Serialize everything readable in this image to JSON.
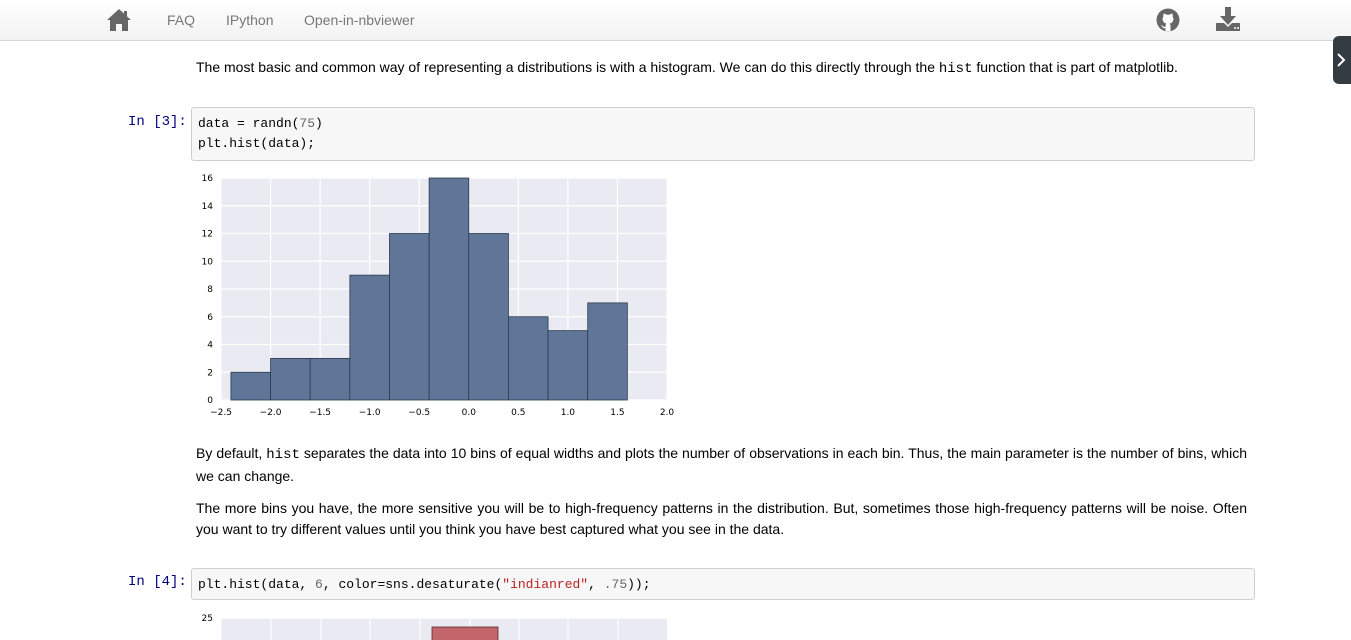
{
  "nav": {
    "links": [
      "FAQ",
      "IPython",
      "Open-in-nbviewer"
    ],
    "home_icon": "home-icon",
    "github_icon": "github-icon",
    "download_icon": "download-icon"
  },
  "side_tab_icon": "chevron-right-icon",
  "markdown": {
    "intro_before": "The most basic and common way of representing a distributions is with a histogram. We can do this directly through the ",
    "intro_code": "hist",
    "intro_after": " function that is part of matplotlib.",
    "para2_before": "By default, ",
    "para2_code": "hist",
    "para2_after": " separates the data into 10 bins of equal widths and plots the number of observations in each bin. Thus, the main parameter is the number of bins, which we can change.",
    "para3": "The more bins you have, the more sensitive you will be to high-frequency patterns in the distribution. But, sometimes those high-frequency patterns will be noise. Often you want to try different values until you think you have best captured what you see in the data."
  },
  "cells": [
    {
      "prompt": "In [3]:",
      "line1_a": "data = randn(",
      "line1_num": "75",
      "line1_b": ")",
      "line2": "plt.hist(data);"
    },
    {
      "prompt": "In [4]:",
      "a": "plt.hist(data, ",
      "n1": "6",
      "b": ", color=sns.desaturate(",
      "s1": "\"indianred\"",
      "c": ", ",
      "n2": ".75",
      "d": "));"
    }
  ],
  "chart_data": [
    {
      "type": "bar",
      "bin_edges": [
        -2.4,
        -2.0,
        -1.6,
        -1.2,
        -0.8,
        -0.4,
        0.0,
        0.4,
        0.8,
        1.2,
        1.6
      ],
      "values": [
        2,
        3,
        3,
        9,
        12,
        16,
        12,
        6,
        5,
        7
      ],
      "xlim": [
        -2.5,
        2.0
      ],
      "ylim": [
        0,
        16
      ],
      "xticks": [
        "−2.5",
        "−2.0",
        "−1.5",
        "−1.0",
        "−0.5",
        "0.0",
        "0.5",
        "1.0",
        "1.5",
        "2.0"
      ],
      "yticks": [
        "0",
        "2",
        "4",
        "6",
        "8",
        "10",
        "12",
        "14",
        "16"
      ],
      "grid": true,
      "color": "#5f7699",
      "background": "#eaeaf2"
    },
    {
      "type": "bar",
      "visible_ytick": "25",
      "visible_bar_top": 24,
      "color": "#c2666b",
      "background": "#eaeaf2",
      "partially_visible": true
    }
  ]
}
